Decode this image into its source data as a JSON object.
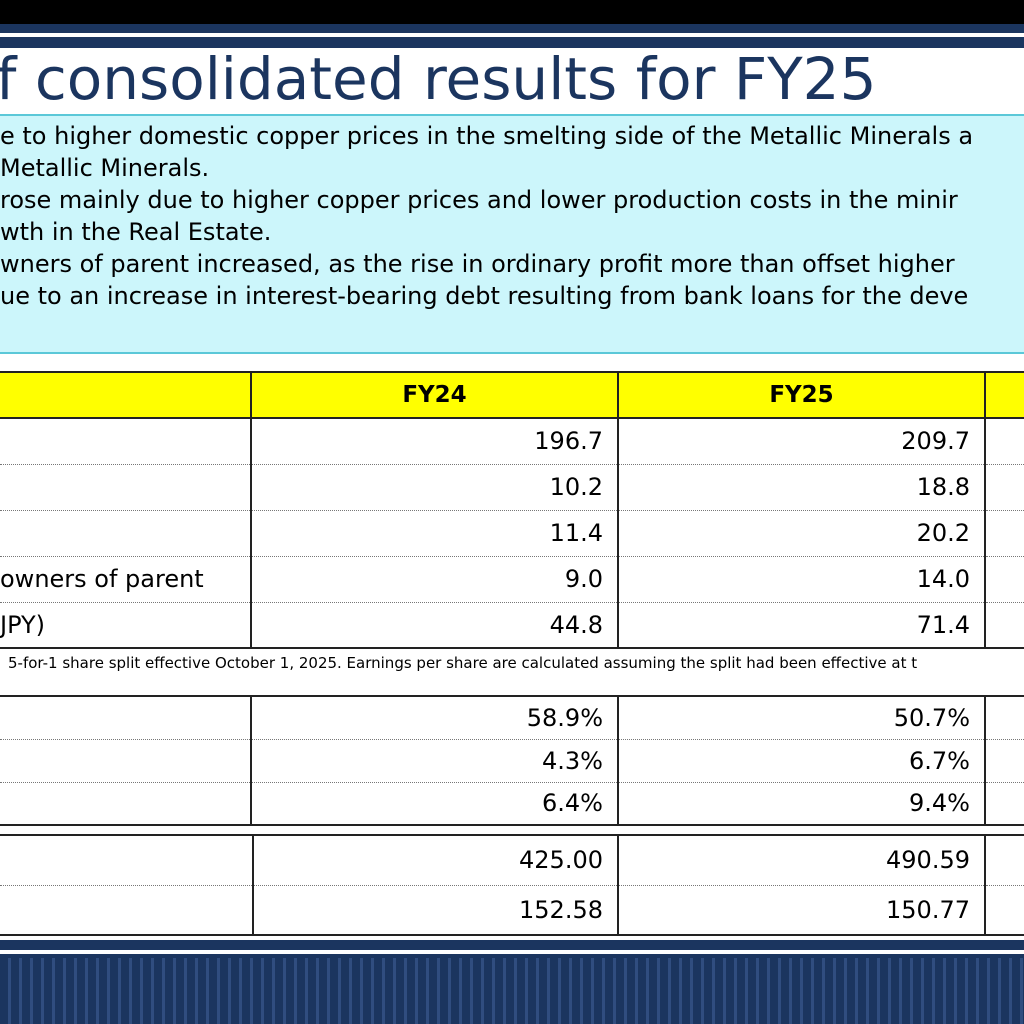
{
  "title": "f consolidated results for FY25",
  "summary": [
    "e to higher domestic copper prices in the smelting side of the Metallic Minerals a",
    "Metallic Minerals.",
    "rose mainly due to higher copper prices and lower production costs in the minir",
    "wth in the Real Estate.",
    "wners of parent increased, as the rise in ordinary profit more than offset higher",
    "ue to an increase in interest-bearing debt resulting from bank loans for the deve"
  ],
  "results_table": {
    "headers": [
      "",
      "FY24",
      "FY25",
      ""
    ],
    "rows": [
      {
        "label": "",
        "fy24": "196.7",
        "fy25": "209.7"
      },
      {
        "label": "",
        "fy24": "10.2",
        "fy25": "18.8"
      },
      {
        "label": "",
        "fy24": "11.4",
        "fy25": "20.2"
      },
      {
        "label": "owners of parent",
        "fy24": "9.0",
        "fy25": "14.0"
      },
      {
        "label": "JPY)",
        "fy24": "44.8",
        "fy25": "71.4"
      }
    ]
  },
  "footnote": "5-for-1 share split effective October 1, 2025. Earnings per share are calculated  assuming the split had been effective at t",
  "ratio_table": {
    "rows": [
      {
        "label": "",
        "fy24": "58.9%",
        "fy25": "50.7%"
      },
      {
        "label": "",
        "fy24": "4.3%",
        "fy25": "6.7%"
      },
      {
        "label": "",
        "fy24": "6.4%",
        "fy25": "9.4%"
      }
    ]
  },
  "price_table": {
    "rows": [
      {
        "label": "",
        "fy24": "425.00",
        "fy25": "490.59"
      },
      {
        "label": "",
        "fy24": "152.58",
        "fy25": "150.77"
      }
    ]
  },
  "colors": {
    "navy": "#1b355f",
    "summary_bg": "#ccf6fb",
    "header_yellow": "#ffff00"
  }
}
